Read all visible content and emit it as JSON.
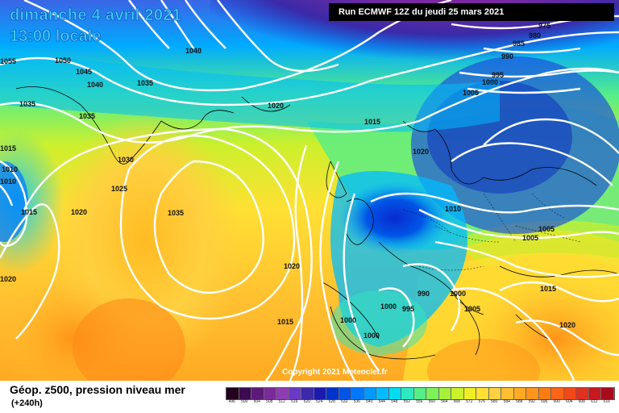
{
  "header": {
    "date_title": "dimanche 4 avril 2021",
    "time_title": "13:00 locale",
    "run_info": "Run ECMWF 12Z du jeudi 25 mars 2021"
  },
  "copyright": "Copyright 2021 Meteociel.fr",
  "legend": {
    "title": "Géop. z500, pression niveau mer",
    "subtitle": "(+240h)",
    "colorbar_colors": [
      "#22001e",
      "#3b0a50",
      "#5e1a7a",
      "#7b2a9a",
      "#8d3cb4",
      "#6a3ac4",
      "#3a2aa8",
      "#1a1ab0",
      "#0033cc",
      "#0055e6",
      "#0077ff",
      "#0099ff",
      "#00bbff",
      "#00ddf0",
      "#2ee8c0",
      "#55ee88",
      "#7df05a",
      "#a6f03c",
      "#ccf02c",
      "#eeee22",
      "#ffe033",
      "#ffd040",
      "#ffbf30",
      "#ffaa22",
      "#ff9418",
      "#ff7c10",
      "#ff6418",
      "#f04a18",
      "#e03020",
      "#c81820",
      "#a80c1c",
      "#8a0414",
      "#6a0010",
      "#4a000a"
    ],
    "colorbar_labels": [
      "496",
      "500",
      "504",
      "508",
      "512",
      "516",
      "520",
      "524",
      "528",
      "532",
      "536",
      "540",
      "544",
      "548",
      "552",
      "556",
      "560",
      "564",
      "568",
      "572",
      "576",
      "580",
      "584",
      "588",
      "592",
      "596",
      "600",
      "604",
      "608",
      "612",
      "616"
    ]
  },
  "isobar_labels": [
    {
      "text": "1055"
    },
    {
      "text": "1050"
    },
    {
      "text": "1045"
    },
    {
      "text": "1040"
    },
    {
      "text": "1040"
    },
    {
      "text": "1035"
    },
    {
      "text": "1035"
    },
    {
      "text": "1035"
    },
    {
      "text": "1020"
    },
    {
      "text": "1015"
    },
    {
      "text": "1030"
    },
    {
      "text": "1025"
    },
    {
      "text": "1035"
    },
    {
      "text": "1015"
    },
    {
      "text": "1010"
    },
    {
      "text": "1010"
    },
    {
      "text": "1015"
    },
    {
      "text": "1020"
    },
    {
      "text": "1020"
    },
    {
      "text": "1020"
    },
    {
      "text": "1020"
    },
    {
      "text": "1015"
    },
    {
      "text": "1010"
    },
    {
      "text": "1005"
    },
    {
      "text": "1000"
    },
    {
      "text": "995"
    },
    {
      "text": "990"
    },
    {
      "text": "985"
    },
    {
      "text": "980"
    },
    {
      "text": "975"
    },
    {
      "text": "1005"
    },
    {
      "text": "1005"
    },
    {
      "text": "1015"
    },
    {
      "text": "1020"
    },
    {
      "text": "990"
    },
    {
      "text": "1000"
    },
    {
      "text": "1000"
    },
    {
      "text": "995"
    },
    {
      "text": "1005"
    },
    {
      "text": "1000"
    },
    {
      "text": "1000"
    },
    {
      "text": "1015"
    }
  ]
}
